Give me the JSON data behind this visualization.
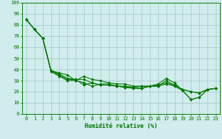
{
  "background_color": "#d0ecec",
  "grid_color": "#a8cccc",
  "line_color": "#007700",
  "marker_color": "#007700",
  "xlabel": "Humidité relative (%)",
  "xlabel_color": "#007700",
  "tick_color": "#007700",
  "ylim": [
    0,
    100
  ],
  "xlim": [
    -0.5,
    23.5
  ],
  "yticks": [
    0,
    10,
    20,
    30,
    40,
    50,
    60,
    70,
    80,
    90,
    100
  ],
  "xticks": [
    0,
    1,
    2,
    3,
    4,
    5,
    6,
    7,
    8,
    9,
    10,
    11,
    12,
    13,
    14,
    15,
    16,
    17,
    18,
    19,
    20,
    21,
    22,
    23
  ],
  "series": [
    [
      85,
      76,
      68,
      39,
      37,
      35,
      30,
      28,
      25,
      27,
      27,
      25,
      25,
      24,
      23,
      25,
      27,
      32,
      28,
      21,
      13,
      15,
      22,
      23
    ],
    [
      85,
      76,
      68,
      39,
      36,
      32,
      31,
      31,
      28,
      26,
      26,
      25,
      24,
      24,
      25,
      25,
      25,
      30,
      26,
      22,
      20,
      19,
      22,
      23
    ],
    [
      85,
      76,
      68,
      39,
      35,
      31,
      31,
      26,
      28,
      26,
      26,
      25,
      24,
      23,
      23,
      25,
      26,
      28,
      26,
      22,
      20,
      19,
      22,
      23
    ],
    [
      85,
      76,
      68,
      38,
      34,
      30,
      30,
      34,
      31,
      30,
      28,
      27,
      27,
      25,
      25,
      25,
      25,
      27,
      25,
      21,
      13,
      15,
      22,
      23
    ]
  ],
  "linewidth": 0.8,
  "markersize": 2.0,
  "tick_fontsize": 5.0,
  "xlabel_fontsize": 6.0
}
